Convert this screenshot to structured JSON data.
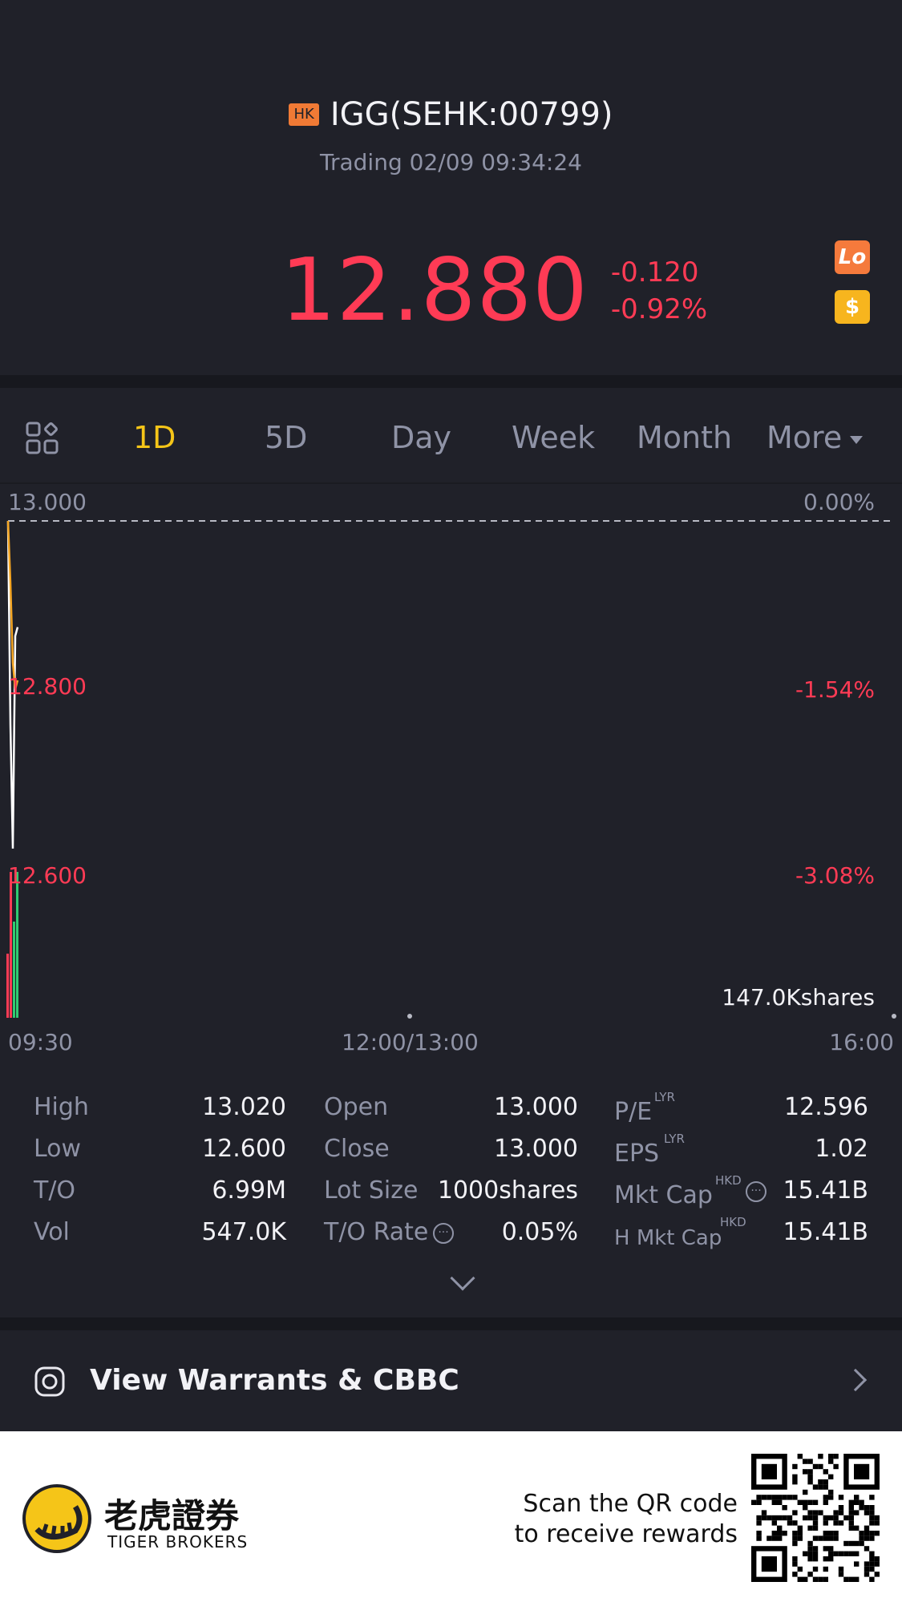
{
  "header": {
    "market_badge": "HK",
    "title": "IGG(SEHK:00799)",
    "status": "Trading 02/09 09:34:24",
    "price": "12.880",
    "change": "-0.120",
    "change_pct": "-0.92%",
    "side_icons": [
      "lo-icon",
      "dollar-icon"
    ],
    "price_color": "#ff3b55"
  },
  "tabs": {
    "items": [
      "1D",
      "5D",
      "Day",
      "Week",
      "Month",
      "More"
    ],
    "active": "1D"
  },
  "chart": {
    "y_left_labels": [
      "13.000",
      "12.800",
      "12.600"
    ],
    "y_right_labels": [
      "0.00%",
      "-1.54%",
      "-3.08%"
    ],
    "volume_label": "147.0Kshares",
    "x_labels": [
      "09:30",
      "12:00/13:00",
      "16:00"
    ]
  },
  "chart_data": {
    "type": "line",
    "x_labels": [
      "09:30",
      "12:00/13:00",
      "16:00"
    ],
    "ylim": [
      12.6,
      13.0
    ],
    "reference_close": 13.0,
    "series": [
      {
        "x": [
          "09:30",
          "09:31",
          "09:32",
          "09:33",
          "09:34"
        ],
        "values": [
          13.0,
          12.77,
          12.63,
          12.87,
          12.88
        ]
      },
      {
        "x": [
          "09:30",
          "09:31",
          "09:32",
          "09:33",
          "09:34"
        ],
        "values": [
          13.0,
          12.93,
          12.84,
          12.81,
          12.82
        ]
      }
    ],
    "volume_max": "147.0Kshares"
  },
  "stats": {
    "col1": [
      {
        "label": "High",
        "value": "13.020"
      },
      {
        "label": "Low",
        "value": "12.600"
      },
      {
        "label": "T/O",
        "value": "6.99M"
      },
      {
        "label": "Vol",
        "value": "547.0K"
      }
    ],
    "col2": [
      {
        "label": "Open",
        "value": "13.000"
      },
      {
        "label": "Close",
        "value": "13.000"
      },
      {
        "label": "Lot Size",
        "value": "1000shares"
      },
      {
        "label": "T/O Rate",
        "value": "0.05%"
      }
    ],
    "col3": [
      {
        "label": "P/E",
        "sup": "LYR",
        "value": "12.596"
      },
      {
        "label": "EPS",
        "sup": "LYR",
        "value": "1.02"
      },
      {
        "label": "Mkt Cap",
        "sup": "HKD",
        "value": "15.41B"
      },
      {
        "label": "H Mkt Cap",
        "sup": "HKD",
        "value": "15.41B"
      }
    ]
  },
  "warrants": {
    "label": "View  Warrants & CBBC"
  },
  "footer": {
    "brand_cn": "老虎證券",
    "brand_en": "TIGER BROKERS",
    "scan_line1": "Scan the QR code",
    "scan_line2": "to receive rewards"
  }
}
